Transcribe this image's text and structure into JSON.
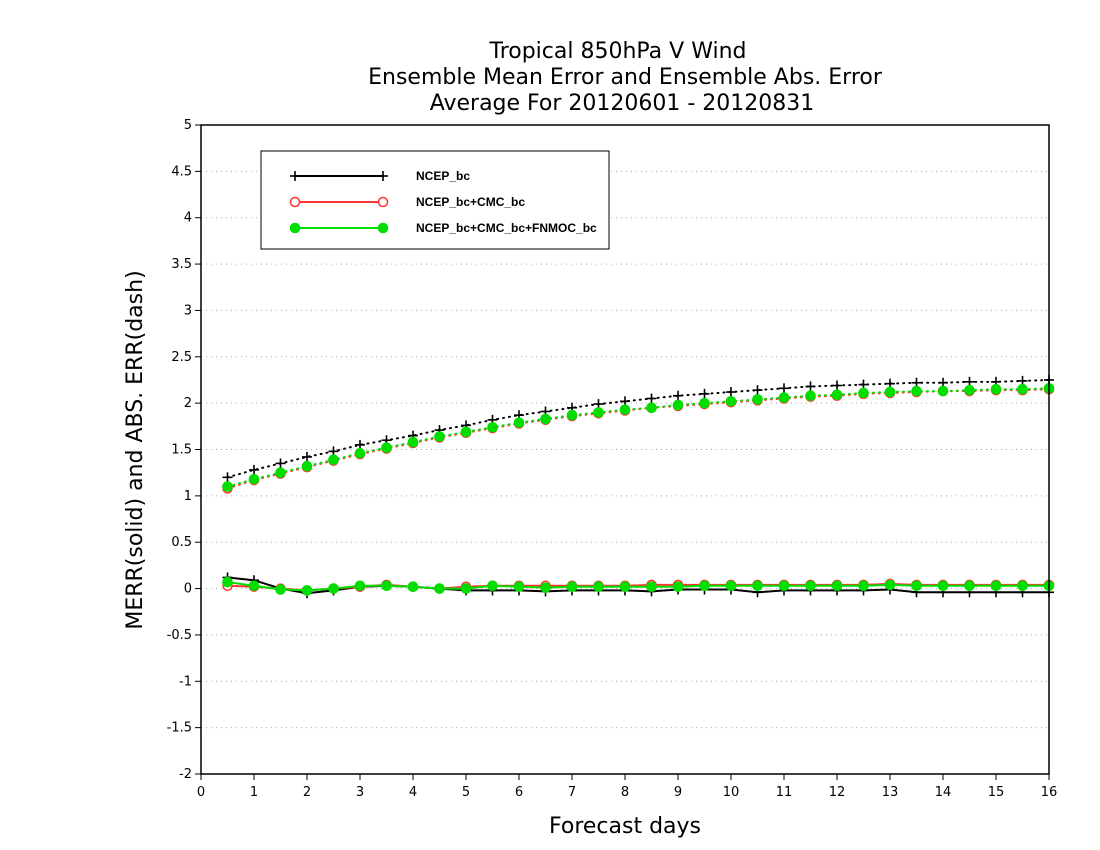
{
  "chart_data": {
    "type": "line",
    "title_lines": [
      "Tropical 850hPa V Wind",
      "Ensemble Mean Error and Ensemble Abs. Error",
      "Average For 20120601 - 20120831"
    ],
    "xlabel": "Forecast days",
    "ylabel": "MERR(solid) and ABS. ERR(dash)",
    "xlim": [
      0,
      16
    ],
    "ylim": [
      -2,
      5
    ],
    "x_ticks": [
      "0",
      "1",
      "2",
      "3",
      "4",
      "5",
      "6",
      "7",
      "8",
      "9",
      "10",
      "11",
      "12",
      "13",
      "14",
      "15",
      "16"
    ],
    "y_ticks": [
      "-2",
      "-1.5",
      "-1",
      "-0.5",
      "0",
      "0.5",
      "1",
      "1.5",
      "2",
      "2.5",
      "3",
      "3.5",
      "4",
      "4.5",
      "5"
    ],
    "grid": "horizontal dotted",
    "legend_position": "top-left",
    "x": [
      0.5,
      1,
      1.5,
      2,
      2.5,
      3,
      3.5,
      4,
      4.5,
      5,
      5.5,
      6,
      6.5,
      7,
      7.5,
      8,
      8.5,
      9,
      9.5,
      10,
      10.5,
      11,
      11.5,
      12,
      12.5,
      13,
      13.5,
      14,
      14.5,
      15,
      15.5,
      16
    ],
    "series": [
      {
        "name": "NCEP_bc",
        "color": "#000000",
        "marker": "plus",
        "merr": [
          0.12,
          0.09,
          0.0,
          -0.05,
          -0.02,
          0.02,
          0.03,
          0.02,
          0.0,
          -0.02,
          -0.02,
          -0.02,
          -0.03,
          -0.02,
          -0.02,
          -0.02,
          -0.03,
          -0.01,
          -0.01,
          -0.01,
          -0.04,
          -0.02,
          -0.02,
          -0.02,
          -0.02,
          -0.01,
          -0.04,
          -0.04,
          -0.04,
          -0.04,
          -0.04,
          -0.04
        ],
        "abs_err": [
          1.2,
          1.28,
          1.35,
          1.42,
          1.48,
          1.55,
          1.6,
          1.65,
          1.71,
          1.76,
          1.82,
          1.87,
          1.91,
          1.95,
          1.99,
          2.02,
          2.05,
          2.08,
          2.1,
          2.12,
          2.14,
          2.16,
          2.18,
          2.19,
          2.2,
          2.21,
          2.22,
          2.22,
          2.23,
          2.23,
          2.24,
          2.25
        ]
      },
      {
        "name": "NCEP_bc+CMC_bc",
        "color": "#ff3333",
        "marker": "open-circle",
        "merr": [
          0.03,
          0.02,
          0.0,
          -0.02,
          0.0,
          0.02,
          0.04,
          0.02,
          0.0,
          0.02,
          0.03,
          0.03,
          0.03,
          0.03,
          0.03,
          0.03,
          0.04,
          0.04,
          0.04,
          0.04,
          0.04,
          0.04,
          0.04,
          0.04,
          0.04,
          0.05,
          0.04,
          0.04,
          0.04,
          0.04,
          0.04,
          0.04
        ],
        "abs_err": [
          1.08,
          1.17,
          1.24,
          1.31,
          1.38,
          1.45,
          1.51,
          1.57,
          1.63,
          1.68,
          1.73,
          1.78,
          1.82,
          1.86,
          1.89,
          1.92,
          1.95,
          1.97,
          1.99,
          2.01,
          2.03,
          2.05,
          2.07,
          2.08,
          2.1,
          2.11,
          2.12,
          2.13,
          2.13,
          2.14,
          2.14,
          2.15
        ]
      },
      {
        "name": "NCEP_bc+CMC_bc+FNMOC_bc",
        "color": "#00dd00",
        "marker": "filled-circle",
        "merr": [
          0.07,
          0.03,
          -0.01,
          -0.02,
          0.0,
          0.03,
          0.03,
          0.02,
          0.0,
          0.0,
          0.03,
          0.02,
          0.01,
          0.02,
          0.02,
          0.02,
          0.02,
          0.02,
          0.03,
          0.03,
          0.03,
          0.03,
          0.03,
          0.03,
          0.03,
          0.04,
          0.03,
          0.03,
          0.03,
          0.03,
          0.03,
          0.03
        ],
        "abs_err": [
          1.1,
          1.18,
          1.25,
          1.32,
          1.39,
          1.46,
          1.52,
          1.58,
          1.64,
          1.69,
          1.74,
          1.79,
          1.83,
          1.87,
          1.9,
          1.93,
          1.95,
          1.98,
          2.0,
          2.02,
          2.04,
          2.06,
          2.08,
          2.09,
          2.11,
          2.12,
          2.13,
          2.13,
          2.14,
          2.15,
          2.15,
          2.16
        ]
      }
    ]
  }
}
